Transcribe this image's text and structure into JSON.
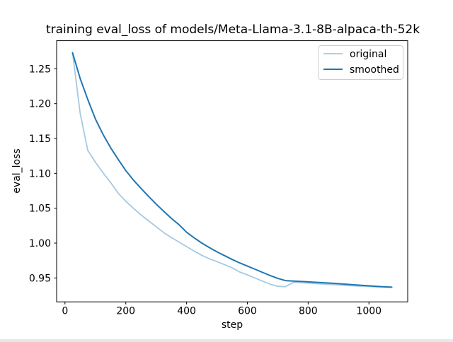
{
  "figure": {
    "title": "training eval_loss of models/Meta-Llama-3.1-8B-alpaca-th-52k",
    "xlabel": "step",
    "ylabel": "eval_loss",
    "background_color": "#ffffff",
    "spine_color": "#000000"
  },
  "axes": {
    "x_tick_labels": [
      "0",
      "200",
      "400",
      "600",
      "800",
      "1000"
    ],
    "x_tick_values": [
      0,
      200,
      400,
      600,
      800,
      1000
    ],
    "y_tick_labels": [
      "0.95",
      "1.00",
      "1.05",
      "1.10",
      "1.15",
      "1.20",
      "1.25"
    ],
    "y_tick_values": [
      0.95,
      1.0,
      1.05,
      1.1,
      1.15,
      1.2,
      1.25
    ]
  },
  "legend": {
    "position": "upper right",
    "items": [
      {
        "label": "original",
        "color": "#a5c9e1"
      },
      {
        "label": "smoothed",
        "color": "#1f77b4"
      }
    ]
  },
  "chart_data": {
    "type": "line",
    "title": "training eval_loss of models/Meta-Llama-3.1-8B-alpaca-th-52k",
    "xlabel": "step",
    "ylabel": "eval_loss",
    "xlim": [
      -27.5,
      1127.5
    ],
    "ylim": [
      0.9157,
      1.2903
    ],
    "grid": false,
    "legend_position": "upper right",
    "x": [
      25,
      50,
      75,
      100,
      125,
      150,
      175,
      200,
      225,
      250,
      275,
      300,
      325,
      350,
      375,
      400,
      425,
      450,
      475,
      500,
      525,
      550,
      575,
      600,
      625,
      650,
      675,
      700,
      725,
      750,
      775,
      800,
      825,
      850,
      875,
      900,
      925,
      950,
      975,
      1000,
      1025,
      1050,
      1075
    ],
    "series": [
      {
        "name": "original",
        "color": "#a5c9e1",
        "values": [
          1.273,
          1.186,
          1.133,
          1.116,
          1.101,
          1.087,
          1.0715,
          1.06,
          1.05,
          1.0405,
          1.032,
          1.0235,
          1.015,
          1.008,
          1.0015,
          0.995,
          0.9885,
          0.9825,
          0.9775,
          0.9735,
          0.969,
          0.9645,
          0.9585,
          0.9545,
          0.95,
          0.9455,
          0.941,
          0.938,
          0.9375,
          0.9435,
          0.9432,
          0.9428,
          0.942,
          0.9412,
          0.9405,
          0.9398,
          0.9392,
          0.9387,
          0.9382,
          0.9377,
          0.9372,
          0.9368,
          0.9365
        ]
      },
      {
        "name": "smoothed",
        "color": "#1f77b4",
        "values": [
          1.273,
          1.236,
          1.206,
          1.178,
          1.156,
          1.137,
          1.12,
          1.104,
          1.0905,
          1.0785,
          1.067,
          1.056,
          1.0455,
          1.0355,
          1.0265,
          1.0155,
          1.0075,
          1.0,
          0.9935,
          0.9875,
          0.982,
          0.9765,
          0.9715,
          0.967,
          0.9625,
          0.958,
          0.9535,
          0.9495,
          0.9462,
          0.9455,
          0.945,
          0.9444,
          0.9438,
          0.9432,
          0.9425,
          0.9417,
          0.941,
          0.9402,
          0.9394,
          0.9387,
          0.938,
          0.9373,
          0.9368
        ]
      }
    ]
  }
}
